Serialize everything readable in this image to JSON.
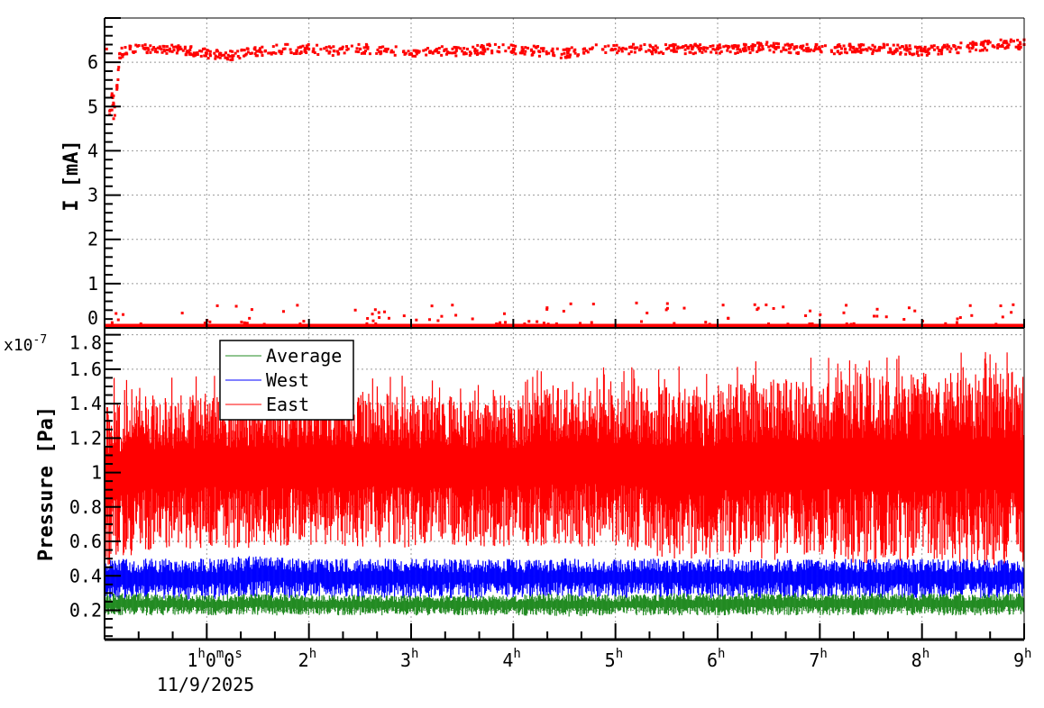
{
  "chart_data": [
    {
      "type": "scatter",
      "ylabel": "I [mA]",
      "xlim_hours": [
        0,
        9
      ],
      "ylim": [
        0,
        7
      ],
      "y_ticks": [
        "0",
        "1",
        "2",
        "3",
        "4",
        "5",
        "6"
      ],
      "grid": true,
      "colors": {
        "points": "#ff0000"
      },
      "series": [
        {
          "x": [
            0.02,
            0.05,
            0.08,
            0.1,
            0.15,
            0.25,
            0.5,
            0.75,
            1,
            1.25,
            1.5,
            1.75,
            2,
            2.25,
            2.5,
            2.75,
            3,
            3.25,
            3.5,
            3.75,
            4,
            4.25,
            4.5,
            4.75,
            5,
            5.25,
            5.5,
            5.75,
            6,
            6.25,
            6.5,
            6.75,
            7,
            7.25,
            7.5,
            7.75,
            8,
            8.25,
            8.5,
            8.75,
            9
          ],
          "y": [
            6.3,
            4.9,
            5.2,
            4.8,
            6.2,
            6.3,
            6.3,
            6.3,
            6.2,
            6.15,
            6.25,
            6.3,
            6.3,
            6.25,
            6.3,
            6.3,
            6.2,
            6.25,
            6.25,
            6.3,
            6.3,
            6.25,
            6.2,
            6.3,
            6.3,
            6.3,
            6.3,
            6.3,
            6.3,
            6.3,
            6.35,
            6.3,
            6.3,
            6.3,
            6.3,
            6.3,
            6.25,
            6.3,
            6.35,
            6.4,
            6.4
          ]
        },
        {
          "x": [
            0,
            1,
            2,
            3,
            4,
            5,
            6,
            7,
            8,
            9
          ],
          "y": [
            0.05,
            0.05,
            0.05,
            0.05,
            0.05,
            0.05,
            0.05,
            0.05,
            0.05,
            0.05
          ]
        }
      ]
    },
    {
      "type": "line",
      "ylabel": "Pressure [Pa]",
      "y_exponent": "x10",
      "y_exponent_power": "-7",
      "ylim": [
        0.03,
        1.84
      ],
      "y_ticks": [
        "0.2",
        "0.4",
        "0.6",
        "0.8",
        "1",
        "1.2",
        "1.4",
        "1.6",
        "1.8"
      ],
      "xlim_hours": [
        0,
        9
      ],
      "x_ticks": [
        {
          "main": "1",
          "parts": [
            [
              "h",
              "0"
            ],
            [
              "m",
              "0"
            ],
            [
              "s",
              ""
            ]
          ]
        },
        {
          "main": "2",
          "parts": [
            [
              "h",
              ""
            ]
          ]
        },
        {
          "main": "3",
          "parts": [
            [
              "h",
              ""
            ]
          ]
        },
        {
          "main": "4",
          "parts": [
            [
              "h",
              ""
            ]
          ]
        },
        {
          "main": "5",
          "parts": [
            [
              "h",
              ""
            ]
          ]
        },
        {
          "main": "6",
          "parts": [
            [
              "h",
              ""
            ]
          ]
        },
        {
          "main": "7",
          "parts": [
            [
              "h",
              ""
            ]
          ]
        },
        {
          "main": "8",
          "parts": [
            [
              "h",
              ""
            ]
          ]
        },
        {
          "main": "9",
          "parts": [
            [
              "h",
              ""
            ]
          ]
        }
      ],
      "x_date": "11/9/2025",
      "grid": true,
      "legend": {
        "position": "top-left",
        "entries": [
          "Average",
          "West",
          "East"
        ]
      },
      "x": [
        0,
        0.5,
        1,
        1.5,
        2,
        2.5,
        3,
        3.5,
        4,
        4.5,
        5,
        5.5,
        6,
        6.5,
        7,
        7.5,
        8,
        8.5,
        9
      ],
      "series": [
        {
          "name": "Average",
          "color": "#228b22",
          "min": [
            0.17,
            0.17,
            0.17,
            0.17,
            0.17,
            0.17,
            0.17,
            0.17,
            0.17,
            0.16,
            0.17,
            0.17,
            0.17,
            0.17,
            0.17,
            0.17,
            0.17,
            0.17,
            0.17
          ],
          "max": [
            0.3,
            0.3,
            0.29,
            0.3,
            0.29,
            0.29,
            0.29,
            0.29,
            0.29,
            0.3,
            0.29,
            0.3,
            0.3,
            0.3,
            0.3,
            0.3,
            0.3,
            0.3,
            0.3
          ]
        },
        {
          "name": "West",
          "color": "#0000ff",
          "min": [
            0.26,
            0.26,
            0.26,
            0.27,
            0.27,
            0.27,
            0.27,
            0.27,
            0.27,
            0.27,
            0.27,
            0.27,
            0.27,
            0.27,
            0.27,
            0.27,
            0.27,
            0.27,
            0.27
          ],
          "max": [
            0.5,
            0.5,
            0.5,
            0.52,
            0.5,
            0.5,
            0.5,
            0.5,
            0.5,
            0.5,
            0.5,
            0.5,
            0.5,
            0.5,
            0.5,
            0.5,
            0.5,
            0.5,
            0.5
          ]
        },
        {
          "name": "East",
          "color": "#ff0000",
          "min": [
            0.45,
            0.55,
            0.56,
            0.56,
            0.57,
            0.57,
            0.56,
            0.57,
            0.57,
            0.57,
            0.56,
            0.5,
            0.5,
            0.48,
            0.48,
            0.47,
            0.47,
            0.46,
            0.45
          ],
          "max": [
            1.45,
            1.45,
            1.45,
            1.45,
            1.45,
            1.45,
            1.45,
            1.45,
            1.45,
            1.5,
            1.5,
            1.5,
            1.5,
            1.55,
            1.55,
            1.58,
            1.58,
            1.58,
            1.58
          ]
        }
      ]
    }
  ]
}
